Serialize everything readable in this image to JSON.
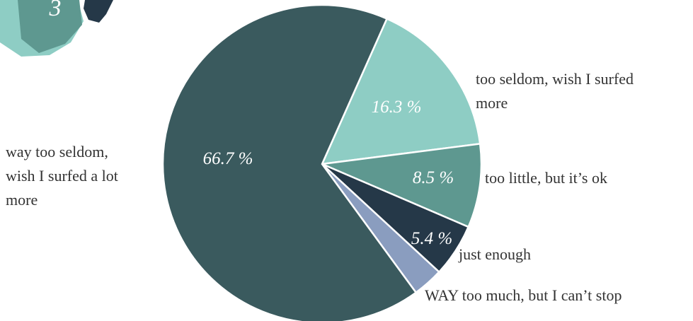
{
  "badge": "3",
  "chart_data": {
    "type": "pie",
    "categories": [
      "too seldom, wish I surfed\nmore",
      "too little, but it’s ok",
      "just enough",
      "WAY too much, but I can’t stop",
      "way too seldom,\nwish I surfed a lot\nmore"
    ],
    "values": [
      16.3,
      8.5,
      5.4,
      3.1,
      66.7
    ],
    "value_labels": [
      "16.3 %",
      "8.5 %",
      "5.4 %",
      null,
      "66.7 %"
    ],
    "colors": [
      "#8ecdc4",
      "#5e9890",
      "#253848",
      "#8a9dbf",
      "#3a5a5e"
    ]
  }
}
